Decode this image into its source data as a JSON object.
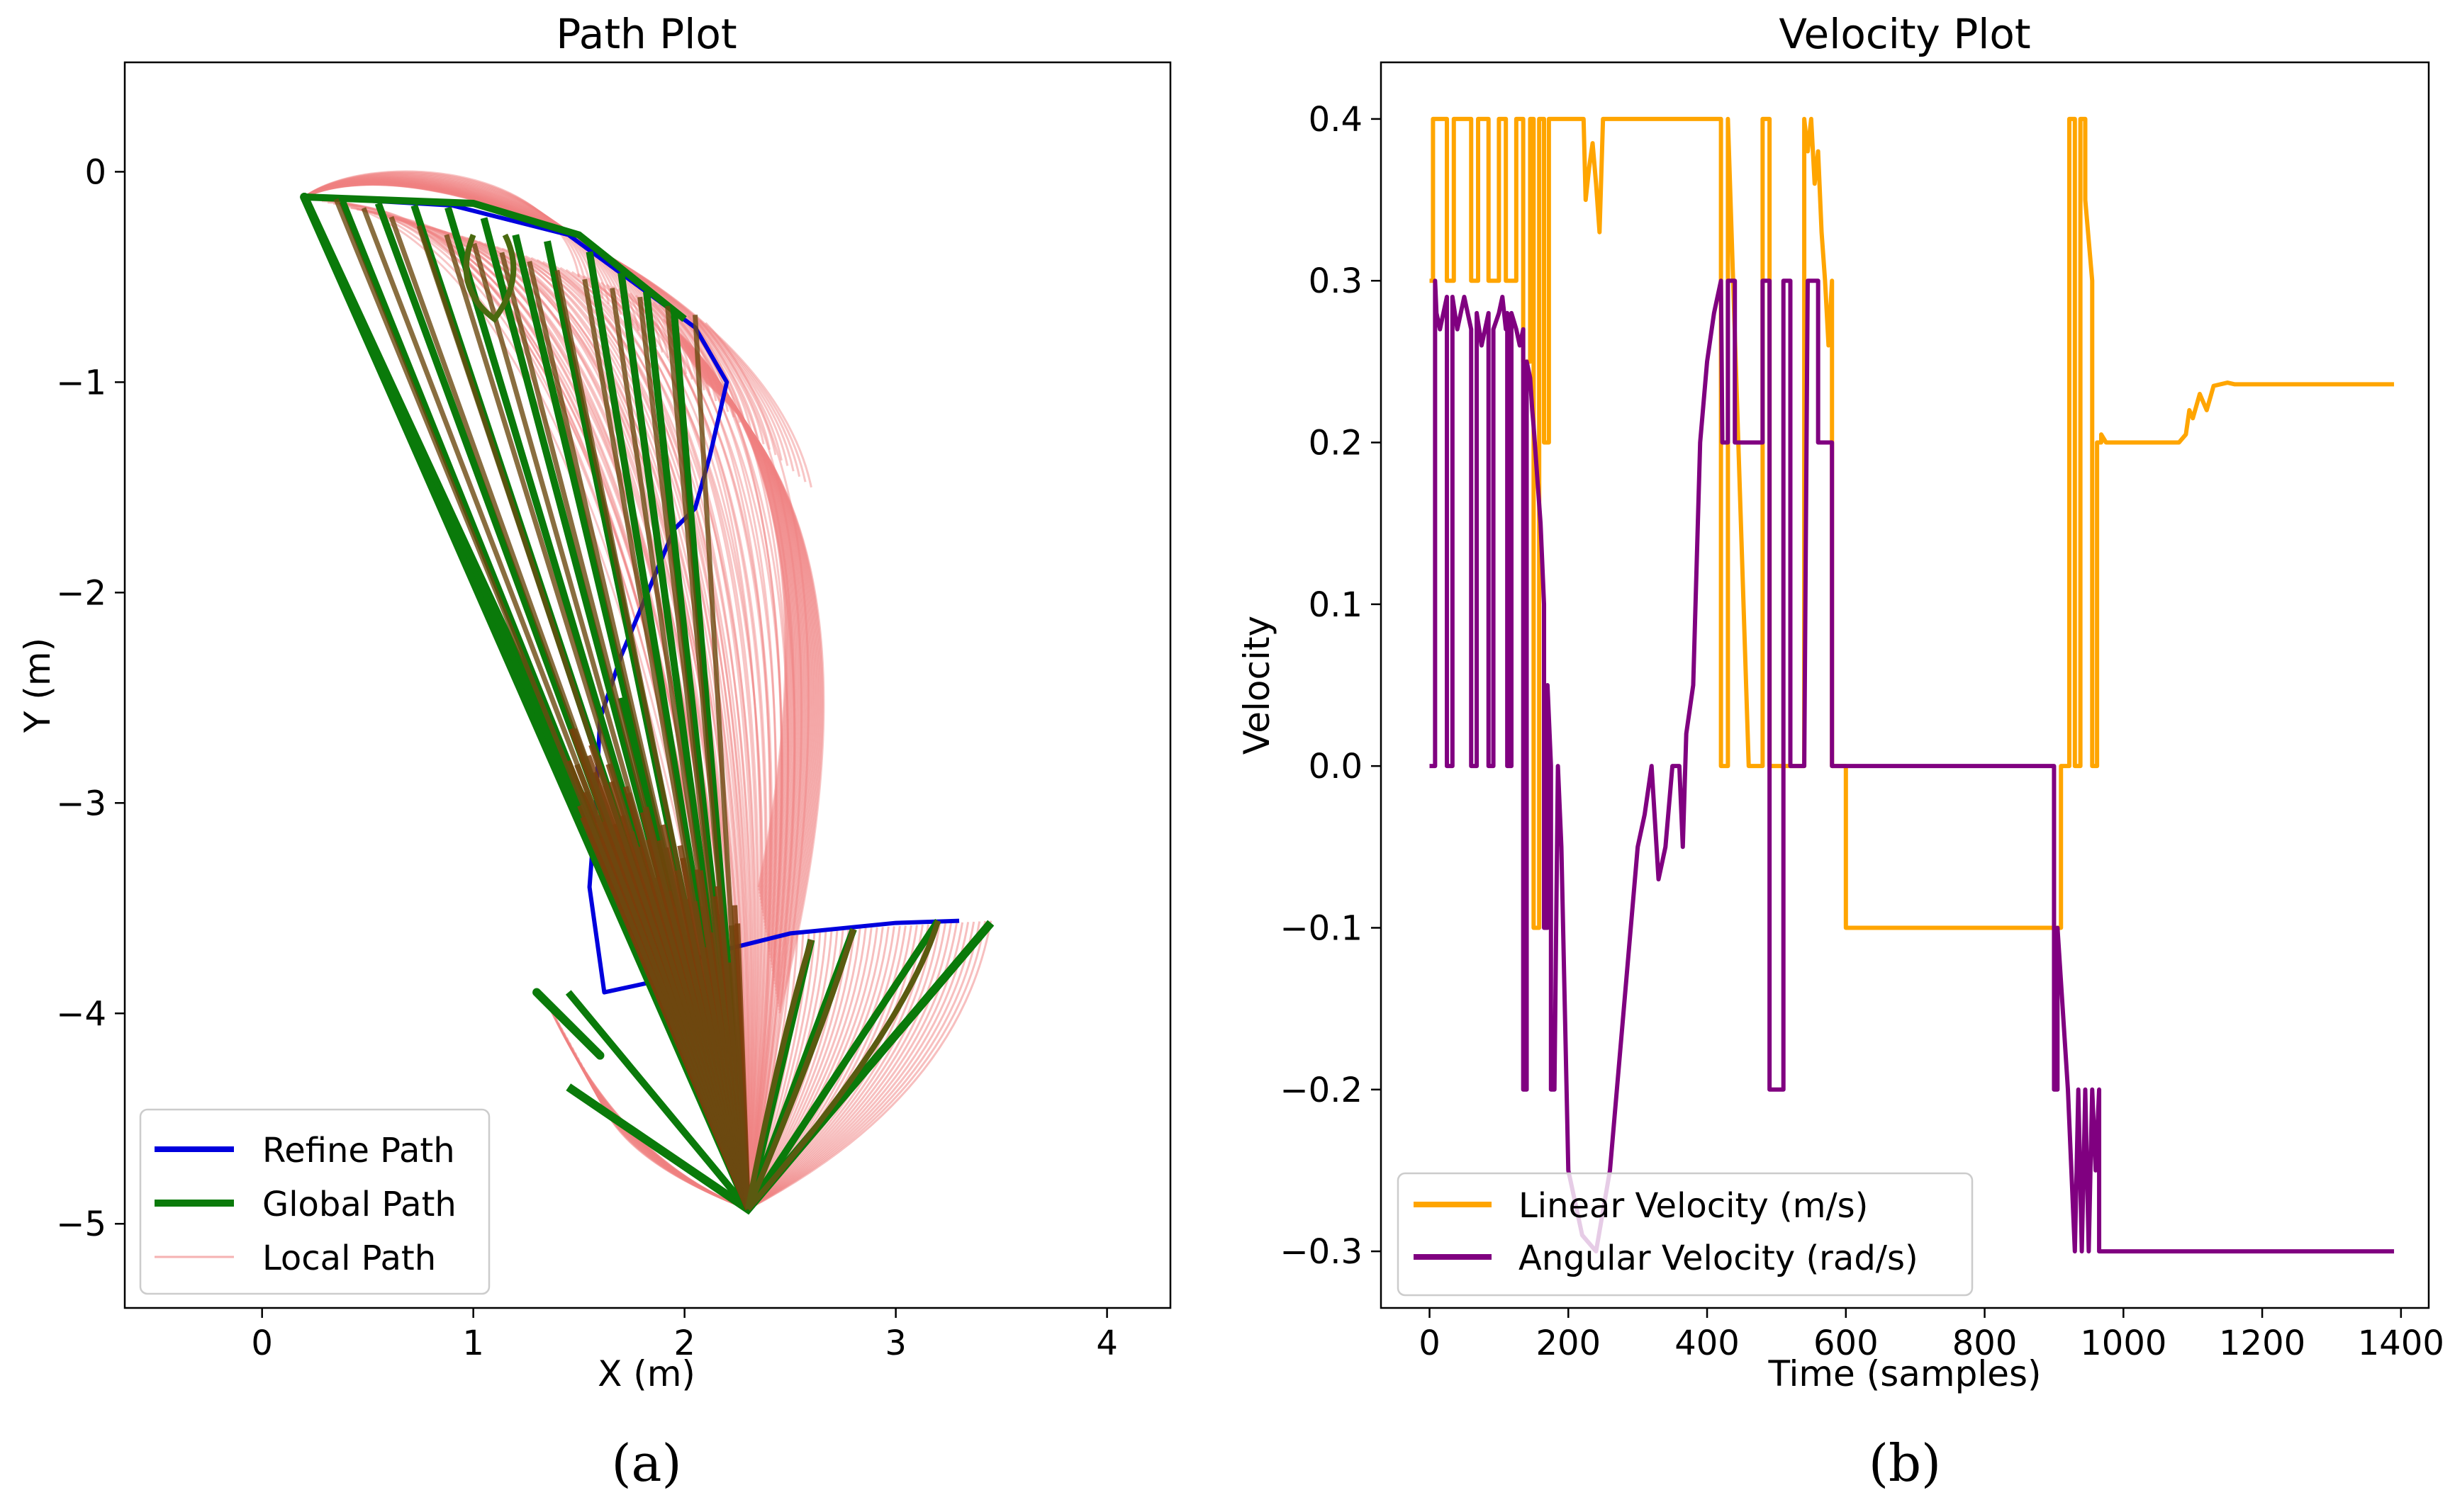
{
  "chart_data": [
    {
      "type": "line",
      "panel_label": "(a)",
      "title": "Path Plot",
      "xlabel": "X (m)",
      "ylabel": "Y (m)",
      "xlim": [
        -0.65,
        4.3
      ],
      "ylim": [
        -5.4,
        0.52
      ],
      "xticks": [
        0,
        1,
        2,
        3,
        4
      ],
      "xtick_labels": [
        "0",
        "1",
        "2",
        "3",
        "4"
      ],
      "yticks": [
        0,
        -1,
        -2,
        -3,
        -4,
        -5
      ],
      "ytick_labels": [
        "0",
        "−1",
        "−2",
        "−3",
        "−4",
        "−5"
      ],
      "legend_position": "lower-left",
      "series": [
        {
          "name": "Refine Path",
          "color": "#0000dd",
          "x": [
            0.2,
            0.9,
            1.45,
            2.05,
            2.2,
            2.12,
            2.05,
            1.95,
            1.7,
            1.6,
            1.58,
            1.55,
            1.62,
            1.85,
            2.1,
            2.5,
            3.0,
            3.3
          ],
          "y": [
            -0.12,
            -0.16,
            -0.3,
            -0.74,
            -1.0,
            -1.35,
            -1.6,
            -1.7,
            -2.3,
            -2.6,
            -3.0,
            -3.4,
            -3.9,
            -3.85,
            -3.72,
            -3.62,
            -3.57,
            -3.56
          ]
        },
        {
          "name": "Global Path",
          "color": "#0a7a0a",
          "hub": [
            2.3,
            -4.93
          ],
          "from_hub_targets": [
            [
              0.2,
              -0.12
            ],
            [
              0.38,
              -0.14
            ],
            [
              0.55,
              -0.15
            ],
            [
              0.72,
              -0.16
            ],
            [
              0.88,
              -0.17
            ],
            [
              1.05,
              -0.22
            ],
            [
              1.2,
              -0.3
            ],
            [
              1.35,
              -0.33
            ],
            [
              1.55,
              -0.38
            ],
            [
              1.7,
              -0.48
            ],
            [
              1.82,
              -0.57
            ],
            [
              1.95,
              -0.66
            ],
            [
              1.7,
              -2.5
            ],
            [
              1.6,
              -3.2
            ],
            [
              1.45,
              -3.9
            ],
            [
              2.6,
              -3.65
            ],
            [
              2.8,
              -3.6
            ],
            [
              3.2,
              -3.56
            ],
            [
              3.45,
              -3.57
            ]
          ],
          "long_segments": [
            [
              [
                0.2,
                -0.12
              ],
              [
                1.6,
                -3.3
              ]
            ],
            [
              [
                0.2,
                -0.12
              ],
              [
                1.55,
                -3.05
              ]
            ],
            [
              [
                0.2,
                -0.12
              ],
              [
                1.85,
                -3.8
              ]
            ],
            [
              [
                1.3,
                -3.9
              ],
              [
                1.6,
                -4.2
              ]
            ]
          ]
        },
        {
          "name": "Local Path",
          "color": "#f08080",
          "hub": [
            2.3,
            -4.93
          ],
          "peak": [
            0.85,
            0.1
          ],
          "outer_bulge_x": 2.75
        }
      ]
    },
    {
      "type": "line",
      "panel_label": "(b)",
      "title": "Velocity Plot",
      "xlabel": "Time (samples)",
      "ylabel": "Velocity",
      "xlim": [
        -70,
        1440
      ],
      "ylim": [
        -0.335,
        0.435
      ],
      "xticks": [
        0,
        200,
        400,
        600,
        800,
        1000,
        1200,
        1400
      ],
      "xtick_labels": [
        "0",
        "200",
        "400",
        "600",
        "800",
        "1000",
        "1200",
        "1400"
      ],
      "yticks": [
        0.4,
        0.3,
        0.2,
        0.1,
        0.0,
        -0.1,
        -0.2,
        -0.3
      ],
      "ytick_labels": [
        "0.4",
        "0.3",
        "0.2",
        "0.1",
        "0.0",
        "−0.1",
        "−0.2",
        "−0.3"
      ],
      "legend_position": "lower-left",
      "series": [
        {
          "name": "Linear Velocity (m/s)",
          "color": "#ffa500",
          "x": [
            0,
            5,
            5,
            25,
            25,
            35,
            35,
            60,
            60,
            70,
            70,
            85,
            85,
            100,
            100,
            110,
            110,
            125,
            125,
            135,
            135,
            145,
            145,
            150,
            150,
            158,
            158,
            165,
            165,
            172,
            172,
            180,
            180,
            220,
            222,
            225,
            230,
            235,
            240,
            245,
            250,
            300,
            350,
            400,
            420,
            420,
            430,
            430,
            460,
            480,
            480,
            490,
            490,
            520,
            540,
            540,
            545,
            550,
            555,
            560,
            565,
            570,
            575,
            580,
            580,
            600,
            600,
            910,
            910,
            922,
            922,
            930,
            930,
            938,
            938,
            945,
            945,
            955,
            955,
            962,
            962,
            968,
            968,
            975,
            980,
            1000,
            1080,
            1090,
            1095,
            1100,
            1110,
            1120,
            1130,
            1150,
            1160,
            1200,
            1300,
            1390
          ],
          "y": [
            0.3,
            0.3,
            0.4,
            0.4,
            0.3,
            0.3,
            0.4,
            0.4,
            0.3,
            0.3,
            0.4,
            0.4,
            0.3,
            0.3,
            0.4,
            0.4,
            0.3,
            0.3,
            0.4,
            0.4,
            0.25,
            0.25,
            0.4,
            0.4,
            -0.1,
            -0.1,
            0.4,
            0.4,
            0.2,
            0.2,
            0.4,
            0.4,
            0.4,
            0.4,
            0.4,
            0.35,
            0.37,
            0.385,
            0.36,
            0.33,
            0.4,
            0.4,
            0.4,
            0.4,
            0.4,
            0.0,
            0.0,
            0.4,
            0.0,
            0.0,
            0.4,
            0.4,
            0.0,
            0.0,
            0.0,
            0.4,
            0.38,
            0.4,
            0.36,
            0.38,
            0.33,
            0.3,
            0.26,
            0.3,
            0.0,
            0.0,
            -0.1,
            -0.1,
            0.0,
            0.0,
            0.4,
            0.4,
            0.0,
            0.0,
            0.4,
            0.4,
            0.35,
            0.3,
            0.0,
            0.0,
            0.2,
            0.2,
            0.205,
            0.2,
            0.2,
            0.2,
            0.2,
            0.205,
            0.22,
            0.215,
            0.23,
            0.22,
            0.235,
            0.237,
            0.236,
            0.236,
            0.236,
            0.236
          ]
        },
        {
          "name": "Angular Velocity (rad/s)",
          "color": "#800080",
          "x": [
            0,
            8,
            8,
            10,
            15,
            20,
            25,
            25,
            33,
            33,
            40,
            45,
            50,
            55,
            60,
            60,
            68,
            68,
            75,
            80,
            85,
            85,
            92,
            92,
            100,
            105,
            110,
            112,
            112,
            118,
            118,
            125,
            130,
            135,
            135,
            140,
            140,
            145,
            148,
            150,
            155,
            160,
            165,
            165,
            170,
            170,
            175,
            175,
            180,
            185,
            190,
            195,
            200,
            220,
            240,
            260,
            280,
            290,
            300,
            310,
            320,
            330,
            340,
            350,
            360,
            365,
            370,
            380,
            390,
            400,
            410,
            420,
            422,
            430,
            430,
            440,
            440,
            460,
            480,
            480,
            490,
            490,
            500,
            510,
            510,
            520,
            520,
            540,
            545,
            560,
            560,
            580,
            580,
            600,
            600,
            900,
            900,
            905,
            905,
            920,
            925,
            930,
            935,
            940,
            945,
            950,
            955,
            960,
            965,
            965,
            1390
          ],
          "y": [
            0.0,
            0.0,
            0.3,
            0.28,
            0.27,
            0.28,
            0.29,
            0.0,
            0.0,
            0.29,
            0.27,
            0.28,
            0.29,
            0.28,
            0.27,
            0.0,
            0.0,
            0.28,
            0.26,
            0.27,
            0.28,
            0.0,
            0.0,
            0.27,
            0.28,
            0.29,
            0.27,
            0.28,
            0.0,
            0.0,
            0.28,
            0.27,
            0.26,
            0.27,
            -0.2,
            -0.2,
            0.25,
            0.24,
            0.22,
            0.21,
            0.18,
            0.15,
            0.1,
            -0.1,
            -0.1,
            0.05,
            0.0,
            -0.2,
            -0.2,
            0.0,
            -0.05,
            -0.15,
            -0.25,
            -0.29,
            -0.3,
            -0.25,
            -0.15,
            -0.1,
            -0.05,
            -0.03,
            0.0,
            -0.07,
            -0.05,
            0.0,
            0.0,
            -0.05,
            0.02,
            0.05,
            0.2,
            0.25,
            0.28,
            0.3,
            0.2,
            0.2,
            0.3,
            0.3,
            0.2,
            0.2,
            0.2,
            0.3,
            0.3,
            -0.2,
            -0.2,
            -0.2,
            0.3,
            0.3,
            0.0,
            0.0,
            0.3,
            0.3,
            0.2,
            0.2,
            0.0,
            0.0,
            0.0,
            0.0,
            -0.2,
            -0.2,
            -0.1,
            -0.2,
            -0.25,
            -0.3,
            -0.2,
            -0.3,
            -0.2,
            -0.3,
            -0.2,
            -0.25,
            -0.2,
            -0.3,
            -0.3
          ]
        }
      ]
    }
  ],
  "captions": {
    "a": "(a)",
    "b": "(b)"
  }
}
